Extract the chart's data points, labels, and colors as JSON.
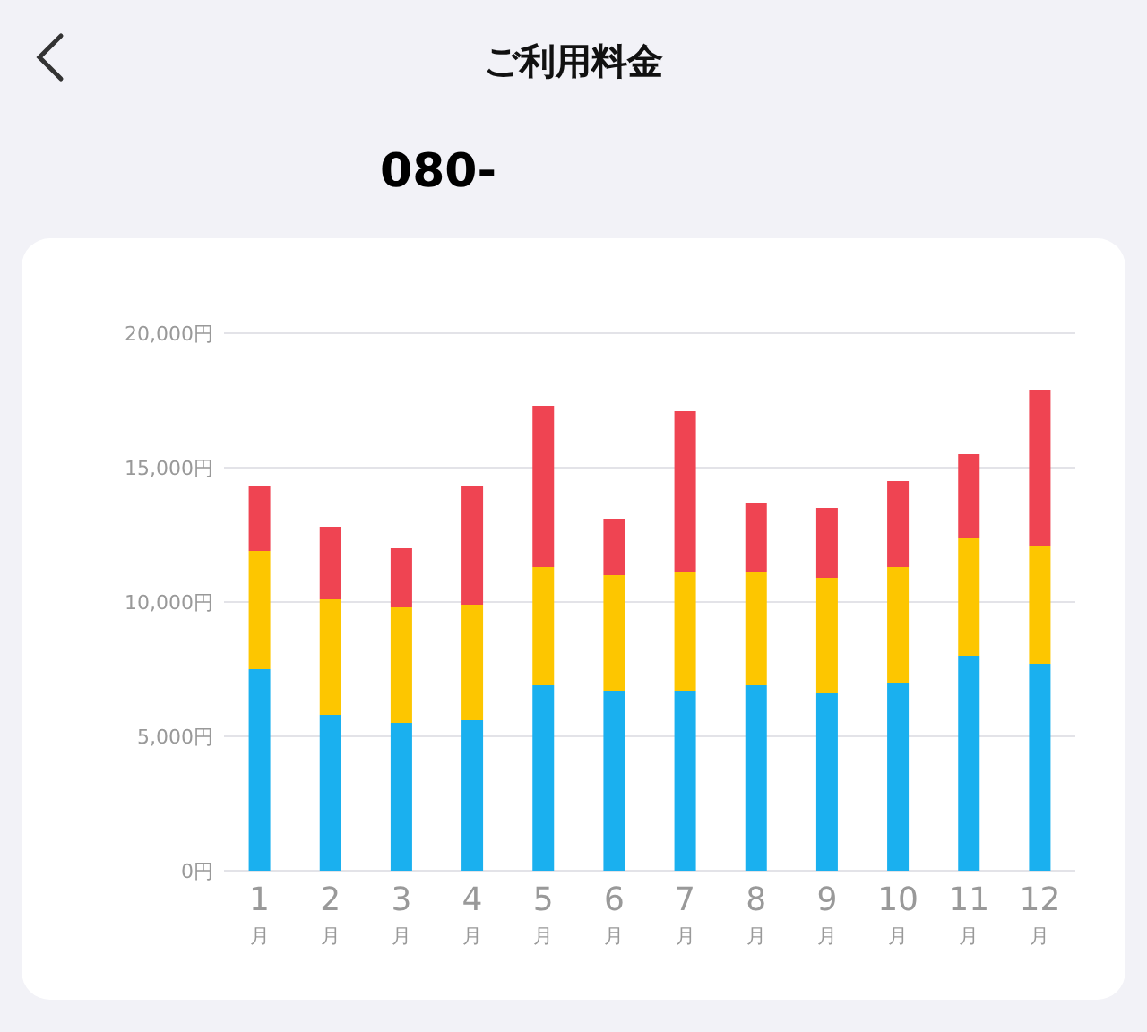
{
  "chart_data": {
    "type": "bar",
    "title": "ご利用料金",
    "subtitle": "080-",
    "categories": [
      "1月",
      "2月",
      "3月",
      "4月",
      "5月",
      "6月",
      "7月",
      "8月",
      "9月",
      "10月",
      "11月",
      "12月"
    ],
    "stacked": true,
    "series": [
      {
        "color": "#1ab0ef",
        "values": [
          7500,
          5800,
          5500,
          5600,
          6900,
          6700,
          6700,
          6900,
          6600,
          7000,
          8000,
          7700
        ]
      },
      {
        "color": "#fdc600",
        "values": [
          4400,
          4300,
          4300,
          4300,
          4400,
          4300,
          4400,
          4200,
          4300,
          4300,
          4400,
          4400
        ]
      },
      {
        "color": "#ef4452",
        "values": [
          2400,
          2700,
          2200,
          4400,
          6000,
          2100,
          6000,
          2600,
          2600,
          3200,
          3100,
          5800
        ]
      }
    ],
    "ylim": [
      0,
      20000
    ],
    "yticks": [
      {
        "value": 0,
        "label": "0円"
      },
      {
        "value": 5000,
        "label": "5,000円"
      },
      {
        "value": 10000,
        "label": "10,000円"
      },
      {
        "value": 15000,
        "label": "15,000円"
      },
      {
        "value": 20000,
        "label": "20,000円"
      }
    ],
    "grid": "y"
  }
}
